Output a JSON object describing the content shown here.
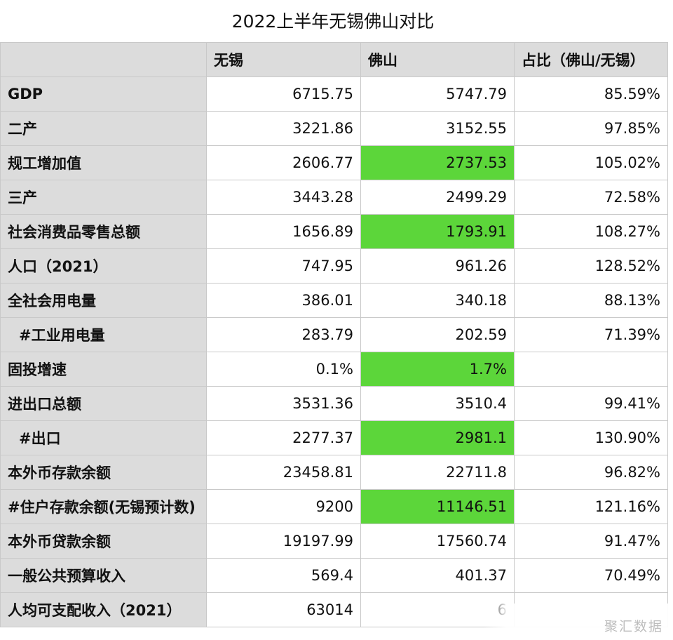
{
  "title": "2022上半年无锡佛山对比",
  "columns": [
    "",
    "无锡",
    "佛山",
    "占比（佛山/无锡）"
  ],
  "rows": [
    {
      "label": "GDP",
      "wuxi": "6715.75",
      "foshan": "5747.79",
      "ratio": "85.59%"
    },
    {
      "label": "二产",
      "wuxi": "3221.86",
      "foshan": "3152.55",
      "ratio": "97.85%"
    },
    {
      "label": "规工增加值",
      "wuxi": "2606.77",
      "foshan": "2737.53",
      "ratio": "105.02%"
    },
    {
      "label": "三产",
      "wuxi": "3443.28",
      "foshan": "2499.29",
      "ratio": "72.58%"
    },
    {
      "label": "社会消费品零售总额",
      "wuxi": "1656.89",
      "foshan": "1793.91",
      "ratio": "108.27%"
    },
    {
      "label": "人口（2021）",
      "wuxi": "747.95",
      "foshan": "961.26",
      "ratio": "128.52%"
    },
    {
      "label": "全社会用电量",
      "wuxi": "386.01",
      "foshan": "340.18",
      "ratio": "88.13%"
    },
    {
      "label": "#工业用电量",
      "wuxi": "283.79",
      "foshan": "202.59",
      "ratio": "71.39%"
    },
    {
      "label": "固投增速",
      "wuxi": "0.1%",
      "foshan": "1.7%",
      "ratio": ""
    },
    {
      "label": "进出口总额",
      "wuxi": "3531.36",
      "foshan": "3510.4",
      "ratio": "99.41%"
    },
    {
      "label": "#出口",
      "wuxi": "2277.37",
      "foshan": "2981.1",
      "ratio": "130.90%"
    },
    {
      "label": "本外币存款余额",
      "wuxi": "23458.81",
      "foshan": "22711.8",
      "ratio": "96.82%"
    },
    {
      "label": "#住户存款余额(无锡预计数)",
      "wuxi": "9200",
      "foshan": "11146.51",
      "ratio": "121.16%"
    },
    {
      "label": "本外币贷款余额",
      "wuxi": "19197.99",
      "foshan": "17560.74",
      "ratio": "91.47%"
    },
    {
      "label": "一般公共预算收入",
      "wuxi": "569.4",
      "foshan": "401.37",
      "ratio": "70.49%"
    },
    {
      "label": "人均可支配收入（2021）",
      "wuxi": "63014",
      "foshan": "6",
      "ratio": ""
    }
  ],
  "highlight_color": "#5cd63a",
  "highlighted_foshan_rows": [
    "规工增加值",
    "社会消费品零售总额",
    "固投增速",
    "#出口",
    "#住户存款余额(无锡预计数)"
  ],
  "watermark": "聚汇数据"
}
